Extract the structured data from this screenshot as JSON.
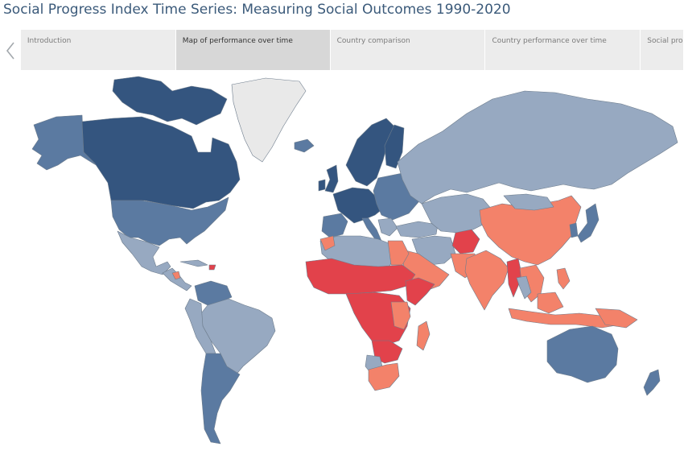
{
  "header": {
    "title": "Social Progress Index Time Series: Measuring Social Outcomes 1990-2020"
  },
  "nav": {
    "back_icon": "chevron-left-icon",
    "tabs": [
      {
        "label": "Introduction",
        "active": false
      },
      {
        "label": "Map of performance over time",
        "active": true
      },
      {
        "label": "Country comparison",
        "active": false
      },
      {
        "label": "Country performance over time",
        "active": false
      },
      {
        "label": "Social pro",
        "active": false
      }
    ]
  },
  "map": {
    "projection": "world mercator",
    "colors": {
      "very_high": "#34557f",
      "high": "#5b7aa1",
      "upper_middle": "#97a9c1",
      "lower_middle": "#f3826a",
      "low": "#e2424b",
      "no_data": "#e9e9e9"
    }
  }
}
